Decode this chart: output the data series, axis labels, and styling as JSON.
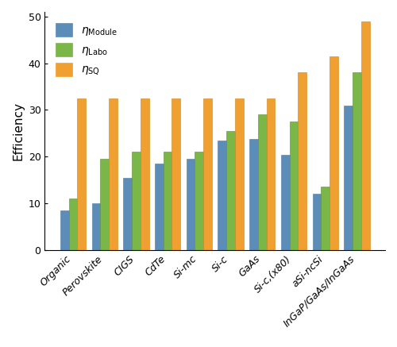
{
  "categories": [
    "Organic",
    "Perovskite",
    "CIGS",
    "CdTe",
    "Si-mc",
    "Si-c",
    "GaAs",
    "Si-c,(x80)",
    "aSi-ncSi",
    "InGaP/GaAs/InGaAs"
  ],
  "eta_module": [
    8.5,
    10.0,
    15.5,
    18.5,
    19.5,
    23.5,
    23.7,
    20.3,
    12.0,
    31.0
  ],
  "eta_labo": [
    11.0,
    19.5,
    21.0,
    21.0,
    21.0,
    25.5,
    29.0,
    27.5,
    13.5,
    38.0
  ],
  "eta_sq": [
    32.5,
    32.5,
    32.5,
    32.5,
    32.5,
    32.5,
    32.5,
    38.0,
    41.5,
    49.0
  ],
  "color_module": "#5b8db8",
  "color_labo": "#7ab648",
  "color_sq": "#f0a030",
  "edge_module": "#4a7aa0",
  "edge_labo": "#5a9030",
  "edge_sq": "#d08010",
  "ylabel": "Efficiency",
  "ylim": [
    0,
    51
  ],
  "yticks": [
    0,
    10,
    20,
    30,
    40,
    50
  ],
  "bar_width": 0.27,
  "ylabel_fontsize": 11,
  "tick_fontsize": 9,
  "legend_fontsize": 10,
  "figsize": [
    5.0,
    4.37
  ],
  "dpi": 100
}
